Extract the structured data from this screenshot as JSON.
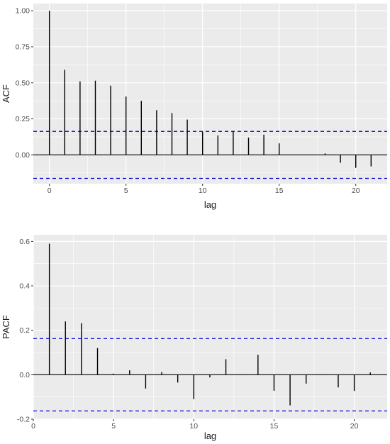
{
  "chart_data": [
    {
      "type": "bar",
      "subtype": "acf-stem",
      "xlabel": "lag",
      "ylabel": "ACF",
      "xlim": [
        -1.05,
        22.05
      ],
      "ylim": [
        -0.2,
        1.05
      ],
      "x_ticks": [
        0,
        5,
        10,
        15,
        20
      ],
      "y_ticks": [
        0.0,
        0.25,
        0.5,
        0.75,
        1.0
      ],
      "y_tick_labels": [
        "0.00",
        "0.25",
        "0.50",
        "0.75",
        "1.00"
      ],
      "x": [
        0,
        1,
        2,
        3,
        4,
        5,
        6,
        7,
        8,
        9,
        10,
        11,
        12,
        13,
        14,
        15,
        16,
        17,
        18,
        19,
        20,
        21
      ],
      "values": [
        1.0,
        0.59,
        0.51,
        0.515,
        0.48,
        0.405,
        0.375,
        0.31,
        0.29,
        0.245,
        0.16,
        0.135,
        0.165,
        0.12,
        0.14,
        0.08,
        0.0,
        0.002,
        0.01,
        -0.055,
        -0.09,
        -0.08
      ],
      "confidence_bounds": [
        0.163,
        -0.163
      ],
      "grid": true,
      "colors": {
        "panel": "#ebebeb",
        "grid": "#ffffff",
        "stem": "#000000",
        "bounds": "#0000cc"
      }
    },
    {
      "type": "bar",
      "subtype": "pacf-stem",
      "xlabel": "lag",
      "ylabel": "PACF",
      "xlim": [
        0,
        22.05
      ],
      "ylim": [
        -0.2,
        0.63
      ],
      "x_ticks": [
        0,
        5,
        10,
        15,
        20
      ],
      "y_ticks": [
        -0.2,
        0.0,
        0.2,
        0.4,
        0.6
      ],
      "y_tick_labels": [
        "-0.2",
        "0.0",
        "0.2",
        "0.4",
        "0.6"
      ],
      "x": [
        1,
        2,
        3,
        4,
        5,
        6,
        7,
        8,
        9,
        10,
        11,
        12,
        13,
        14,
        15,
        16,
        17,
        18,
        19,
        20,
        21
      ],
      "values": [
        0.59,
        0.24,
        0.232,
        0.12,
        0.005,
        0.02,
        -0.062,
        0.012,
        -0.035,
        -0.11,
        -0.012,
        0.07,
        0.002,
        0.09,
        -0.072,
        -0.138,
        -0.04,
        0.002,
        -0.057,
        -0.073,
        0.01
      ],
      "confidence_bounds": [
        0.163,
        -0.163
      ],
      "grid": true,
      "colors": {
        "panel": "#ebebeb",
        "grid": "#ffffff",
        "stem": "#000000",
        "bounds": "#0000cc"
      }
    }
  ]
}
